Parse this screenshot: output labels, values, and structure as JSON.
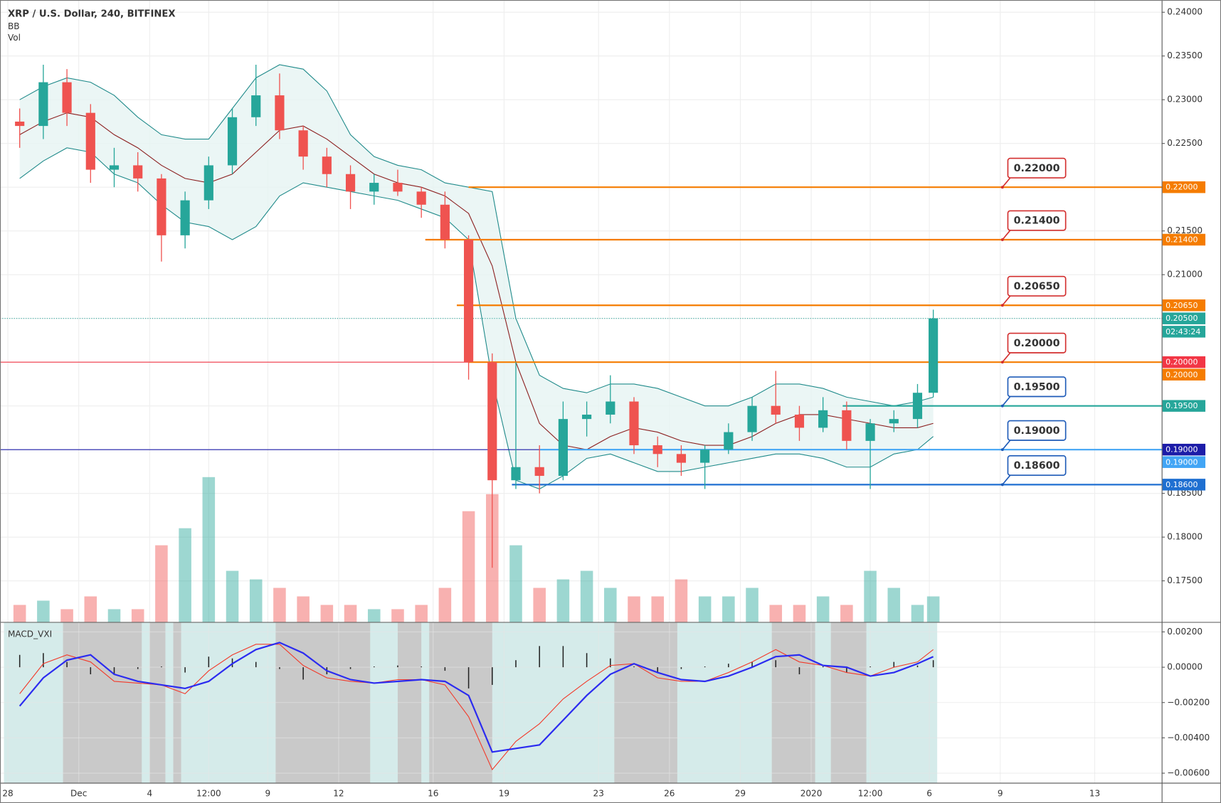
{
  "chart_data": [
    {
      "type": "candlestick",
      "title": "XRP / U.S. Dollar, 240, BITFINEX",
      "indicators": [
        "BB",
        "Vol"
      ],
      "x": [
        "2019-11-28T12:00",
        "2019-11-29T12:00",
        "2019-11-30T12:00",
        "2019-12-01T12:00",
        "2019-12-02T12:00",
        "2019-12-03T12:00",
        "2019-12-04T12:00",
        "2019-12-05T12:00",
        "2019-12-06T12:00",
        "2019-12-07T12:00",
        "2019-12-08T12:00",
        "2019-12-09T12:00",
        "2019-12-10T12:00",
        "2019-12-11T12:00",
        "2019-12-12T12:00",
        "2019-12-13T12:00",
        "2019-12-14T12:00",
        "2019-12-15T12:00",
        "2019-12-16T12:00",
        "2019-12-17T12:00",
        "2019-12-18T12:00",
        "2019-12-19T12:00",
        "2019-12-20T12:00",
        "2019-12-21T12:00",
        "2019-12-22T12:00",
        "2019-12-23T12:00",
        "2019-12-24T12:00",
        "2019-12-25T12:00",
        "2019-12-26T12:00",
        "2019-12-27T12:00",
        "2019-12-28T12:00",
        "2019-12-29T12:00",
        "2019-12-30T12:00",
        "2019-12-31T12:00",
        "2020-01-01T12:00",
        "2020-01-02T12:00",
        "2020-01-03T12:00",
        "2020-01-04T12:00",
        "2020-01-05T12:00",
        "2020-01-06T04:00"
      ],
      "open": [
        0.2275,
        0.227,
        0.232,
        0.2285,
        0.222,
        0.2225,
        0.221,
        0.2145,
        0.2185,
        0.2225,
        0.228,
        0.2305,
        0.2265,
        0.2235,
        0.2215,
        0.2195,
        0.2205,
        0.2195,
        0.218,
        0.214,
        0.2,
        0.1865,
        0.188,
        0.187,
        0.1935,
        0.194,
        0.1955,
        0.1905,
        0.1895,
        0.1885,
        0.19,
        0.192,
        0.195,
        0.194,
        0.1925,
        0.1945,
        0.191,
        0.193,
        0.1935,
        0.1965
      ],
      "high": [
        0.229,
        0.234,
        0.2335,
        0.2295,
        0.2245,
        0.224,
        0.2215,
        0.2195,
        0.2235,
        0.229,
        0.234,
        0.233,
        0.227,
        0.2245,
        0.2225,
        0.2215,
        0.222,
        0.22,
        0.2195,
        0.2145,
        0.201,
        0.2,
        0.1905,
        0.1955,
        0.1955,
        0.1985,
        0.196,
        0.1915,
        0.1905,
        0.1905,
        0.193,
        0.196,
        0.199,
        0.195,
        0.196,
        0.1955,
        0.1935,
        0.1945,
        0.1975,
        0.206
      ],
      "low": [
        0.2245,
        0.2255,
        0.227,
        0.2205,
        0.22,
        0.2195,
        0.2115,
        0.213,
        0.2175,
        0.2215,
        0.227,
        0.2255,
        0.222,
        0.22,
        0.2175,
        0.218,
        0.219,
        0.2165,
        0.213,
        0.198,
        0.1765,
        0.1855,
        0.185,
        0.1865,
        0.1915,
        0.193,
        0.1895,
        0.188,
        0.187,
        0.1855,
        0.1895,
        0.191,
        0.193,
        0.191,
        0.192,
        0.19,
        0.1855,
        0.192,
        0.1925,
        0.196
      ],
      "close": [
        0.227,
        0.232,
        0.2285,
        0.222,
        0.2225,
        0.221,
        0.2145,
        0.2185,
        0.2225,
        0.228,
        0.2305,
        0.2265,
        0.2235,
        0.2215,
        0.2195,
        0.2205,
        0.2195,
        0.218,
        0.214,
        0.2,
        0.1865,
        0.188,
        0.187,
        0.1935,
        0.194,
        0.1955,
        0.1905,
        0.1895,
        0.1885,
        0.19,
        0.192,
        0.195,
        0.194,
        0.1925,
        0.1945,
        0.191,
        0.193,
        0.1935,
        0.1965,
        0.205
      ],
      "volume": [
        20,
        25,
        15,
        30,
        15,
        15,
        90,
        110,
        170,
        60,
        50,
        40,
        30,
        20,
        20,
        15,
        15,
        20,
        40,
        130,
        150,
        90,
        40,
        50,
        60,
        40,
        30,
        30,
        50,
        30,
        30,
        40,
        20,
        20,
        30,
        20,
        60,
        40,
        20,
        30
      ],
      "volume_lim": [
        0,
        730
      ],
      "bb_upper": [
        0.23,
        0.2315,
        0.2325,
        0.232,
        0.2305,
        0.228,
        0.226,
        0.2255,
        0.2255,
        0.229,
        0.2325,
        0.234,
        0.2335,
        0.231,
        0.226,
        0.2235,
        0.2225,
        0.222,
        0.2205,
        0.22,
        0.2195,
        0.205,
        0.1985,
        0.197,
        0.1965,
        0.1975,
        0.1975,
        0.197,
        0.196,
        0.195,
        0.195,
        0.196,
        0.1975,
        0.1975,
        0.197,
        0.196,
        0.1955,
        0.195,
        0.1955,
        0.196
      ],
      "bb_middle": [
        0.226,
        0.2275,
        0.2285,
        0.228,
        0.226,
        0.2245,
        0.2225,
        0.221,
        0.2205,
        0.2215,
        0.224,
        0.2265,
        0.227,
        0.2255,
        0.2235,
        0.2215,
        0.2205,
        0.22,
        0.219,
        0.217,
        0.211,
        0.2,
        0.193,
        0.1905,
        0.19,
        0.1915,
        0.1925,
        0.192,
        0.191,
        0.1905,
        0.1905,
        0.1915,
        0.193,
        0.194,
        0.194,
        0.1935,
        0.193,
        0.1925,
        0.1925,
        0.193
      ],
      "bb_lower": [
        0.221,
        0.223,
        0.2245,
        0.224,
        0.2215,
        0.2205,
        0.218,
        0.216,
        0.2155,
        0.214,
        0.2155,
        0.219,
        0.2205,
        0.22,
        0.2195,
        0.219,
        0.2185,
        0.2175,
        0.2165,
        0.214,
        0.198,
        0.1865,
        0.1855,
        0.187,
        0.189,
        0.1895,
        0.1885,
        0.1875,
        0.1875,
        0.188,
        0.1885,
        0.189,
        0.1895,
        0.1895,
        0.189,
        0.188,
        0.188,
        0.1895,
        0.19,
        0.1915
      ],
      "up_color": "#26a69a",
      "down_color": "#ef5350",
      "bb_color": "#1f8a8a",
      "bb_middle_color": "#8b1e1e",
      "bb_fill": "#e6f4f2",
      "xlim": [
        "2019-11-27T16:00",
        "2020-01-15T20:00"
      ],
      "ylim": [
        0.1703,
        0.2414
      ],
      "yticks": [
        {
          "value": 0.24,
          "label": "0.24000"
        },
        {
          "value": 0.235,
          "label": "0.23500"
        },
        {
          "value": 0.23,
          "label": "0.23000"
        },
        {
          "value": 0.225,
          "label": "0.22500"
        },
        {
          "value": 0.22,
          "label": "0.22000"
        },
        {
          "value": 0.215,
          "label": "0.21500"
        },
        {
          "value": 0.21,
          "label": "0.21000"
        },
        {
          "value": 0.205,
          "label": "0.20500"
        },
        {
          "value": 0.2,
          "label": "0.20000"
        },
        {
          "value": 0.195,
          "label": "0.19500"
        },
        {
          "value": 0.19,
          "label": "0.19000"
        },
        {
          "value": 0.185,
          "label": "0.18500"
        },
        {
          "value": 0.18,
          "label": "0.18000"
        },
        {
          "value": 0.175,
          "label": "0.17500"
        }
      ],
      "grid": true,
      "levels": [
        {
          "value": 0.22,
          "label": "0.22000",
          "color": "#f57c00",
          "callout_color": "#d32f2f",
          "start": "2019-12-17T12:00"
        },
        {
          "value": 0.214,
          "label": "0.21400",
          "color": "#f57c00",
          "callout_color": "#d32f2f",
          "start": "2019-12-15T16:00"
        },
        {
          "value": 0.2065,
          "label": "0.20650",
          "color": "#f57c00",
          "callout_color": "#d32f2f",
          "start": "2019-12-17T00:00"
        },
        {
          "value": 0.2,
          "label": "0.20000",
          "color": "#f57c00",
          "callout_color": "#d32f2f",
          "start": "2019-12-17T12:00"
        },
        {
          "value": 0.195,
          "label": "0.19500",
          "color": "#26a69a",
          "callout_color": "#1e5bb8",
          "start": "2020-01-02T08:00"
        },
        {
          "value": 0.19,
          "label": "0.19000",
          "color": "#42a5f5",
          "callout_color": "#1e5bb8",
          "start": "2019-12-20T12:00"
        },
        {
          "value": 0.186,
          "label": "0.18600",
          "color": "#1e6fd1",
          "callout_color": "#1e5bb8",
          "start": "2019-12-19T08:00"
        }
      ],
      "hlines": [
        {
          "value": 0.2,
          "label": "0.20000",
          "color": "#f23645"
        },
        {
          "value": 0.19,
          "label": "0.19000",
          "color": "#1c1ca8"
        },
        {
          "value": 0.205,
          "label": "0.20500",
          "color": "#26a69a",
          "dotted": true,
          "countdown": "02:43:24"
        }
      ]
    },
    {
      "type": "line",
      "title": "MACD_VXI",
      "x": [
        "2019-11-28T12:00",
        "2019-11-29T12:00",
        "2019-11-30T12:00",
        "2019-12-01T12:00",
        "2019-12-02T12:00",
        "2019-12-03T12:00",
        "2019-12-04T12:00",
        "2019-12-05T12:00",
        "2019-12-06T12:00",
        "2019-12-07T12:00",
        "2019-12-08T12:00",
        "2019-12-09T12:00",
        "2019-12-10T12:00",
        "2019-12-11T12:00",
        "2019-12-12T12:00",
        "2019-12-13T12:00",
        "2019-12-14T12:00",
        "2019-12-15T12:00",
        "2019-12-16T12:00",
        "2019-12-17T12:00",
        "2019-12-18T12:00",
        "2019-12-19T12:00",
        "2019-12-20T12:00",
        "2019-12-21T12:00",
        "2019-12-22T12:00",
        "2019-12-23T12:00",
        "2019-12-24T12:00",
        "2019-12-25T12:00",
        "2019-12-26T12:00",
        "2019-12-27T12:00",
        "2019-12-28T12:00",
        "2019-12-29T12:00",
        "2019-12-30T12:00",
        "2019-12-31T12:00",
        "2020-01-01T12:00",
        "2020-01-02T12:00",
        "2020-01-03T12:00",
        "2020-01-04T12:00",
        "2020-01-05T12:00",
        "2020-01-06T04:00"
      ],
      "macd": [
        -0.0015,
        0.0002,
        0.0007,
        0.0003,
        -0.0008,
        -0.0009,
        -0.001,
        -0.0015,
        -0.0002,
        0.0007,
        0.0013,
        0.0013,
        0.0001,
        -0.0006,
        -0.0008,
        -0.0009,
        -0.0007,
        -0.0007,
        -0.001,
        -0.0028,
        -0.0058,
        -0.0042,
        -0.0032,
        -0.0018,
        -0.0008,
        0.0001,
        0.0002,
        -0.0006,
        -0.0008,
        -0.0008,
        -0.0003,
        0.0003,
        0.001,
        0.0003,
        0.0001,
        -0.0003,
        -0.0005,
        0,
        0.0003,
        0.001
      ],
      "signal": [
        -0.0022,
        -0.0006,
        0.0004,
        0.0007,
        -0.0004,
        -0.0008,
        -0.001,
        -0.0012,
        -0.0008,
        0.0002,
        0.001,
        0.0014,
        0.0008,
        -0.0002,
        -0.0007,
        -0.0009,
        -0.0008,
        -0.0007,
        -0.0008,
        -0.0016,
        -0.0048,
        -0.0046,
        -0.0044,
        -0.003,
        -0.0016,
        -0.0004,
        0.0002,
        -0.0003,
        -0.0007,
        -0.0008,
        -0.0005,
        0,
        0.0006,
        0.0007,
        0.0001,
        0,
        -0.0005,
        -0.0003,
        0.0002,
        0.0006
      ],
      "histogram": [
        0.0007,
        0.0008,
        0.0003,
        -0.0004,
        -0.0004,
        -0.0001,
        0,
        -0.0003,
        0.0006,
        0.0005,
        0.0003,
        -0.0001,
        -0.0007,
        -0.0004,
        -0.0001,
        0,
        0.0001,
        0,
        -0.0002,
        -0.0012,
        -0.001,
        0.0004,
        0.0012,
        0.0012,
        0.0008,
        0.0005,
        0,
        -0.0003,
        -0.0001,
        0,
        0.0002,
        0.0003,
        0.0004,
        -0.0004,
        0,
        -0.0003,
        0,
        0.0003,
        0.0001,
        0.0004
      ],
      "macd_color": "#f23a2a",
      "signal_color": "#2b2bf0",
      "histogram_color": "#222222",
      "zones": [
        {
          "start": "2019-11-27T20:00",
          "end": "2020-01-06T08:00",
          "color": "#d5ebea"
        },
        {
          "start": "2019-11-30T08:00",
          "end": "2019-12-03T16:00",
          "color": "#c9c9c9"
        },
        {
          "start": "2019-12-04T00:00",
          "end": "2019-12-04T16:00",
          "color": "#c9c9c9"
        },
        {
          "start": "2019-12-05T00:00",
          "end": "2019-12-05T08:00",
          "color": "#c9c9c9"
        },
        {
          "start": "2019-12-09T08:00",
          "end": "2019-12-13T08:00",
          "color": "#c9c9c9"
        },
        {
          "start": "2019-12-14T12:00",
          "end": "2019-12-15T12:00",
          "color": "#c9c9c9"
        },
        {
          "start": "2019-12-15T20:00",
          "end": "2019-12-18T12:00",
          "color": "#c9c9c9"
        },
        {
          "start": "2019-12-23T16:00",
          "end": "2019-12-26T08:00",
          "color": "#c9c9c9"
        },
        {
          "start": "2019-12-30T08:00",
          "end": "2020-01-01T04:00",
          "color": "#c9c9c9"
        },
        {
          "start": "2020-01-01T20:00",
          "end": "2020-01-03T08:00",
          "color": "#c9c9c9"
        }
      ],
      "xlim": [
        "2019-11-27T16:00",
        "2020-01-15T20:00"
      ],
      "ylim": [
        -0.00654,
        0.00252
      ],
      "yticks": [
        {
          "value": 0.002,
          "label": "0.00200"
        },
        {
          "value": 0,
          "label": "0.00000"
        },
        {
          "value": -0.002,
          "label": "−0.00200"
        },
        {
          "value": -0.004,
          "label": "−0.00400"
        },
        {
          "value": -0.006,
          "label": "−0.00600"
        }
      ],
      "xticks": [
        {
          "value": "2019-11-28T00:00",
          "label": "28"
        },
        {
          "value": "2019-12-01T00:00",
          "label": "Dec"
        },
        {
          "value": "2019-12-04T00:00",
          "label": "4"
        },
        {
          "value": "2019-12-06T12:00",
          "label": "12:00"
        },
        {
          "value": "2019-12-09T00:00",
          "label": "9"
        },
        {
          "value": "2019-12-12T00:00",
          "label": "12"
        },
        {
          "value": "2019-12-16T00:00",
          "label": "16"
        },
        {
          "value": "2019-12-19T00:00",
          "label": "19"
        },
        {
          "value": "2019-12-23T00:00",
          "label": "23"
        },
        {
          "value": "2019-12-26T00:00",
          "label": "26"
        },
        {
          "value": "2019-12-29T00:00",
          "label": "29"
        },
        {
          "value": "2020-01-01T00:00",
          "label": "2020"
        },
        {
          "value": "2020-01-03T12:00",
          "label": "12:00"
        },
        {
          "value": "2020-01-06T00:00",
          "label": "6"
        },
        {
          "value": "2020-01-09T00:00",
          "label": "9"
        },
        {
          "value": "2020-01-13T00:00",
          "label": "13"
        }
      ],
      "grid": true
    }
  ]
}
